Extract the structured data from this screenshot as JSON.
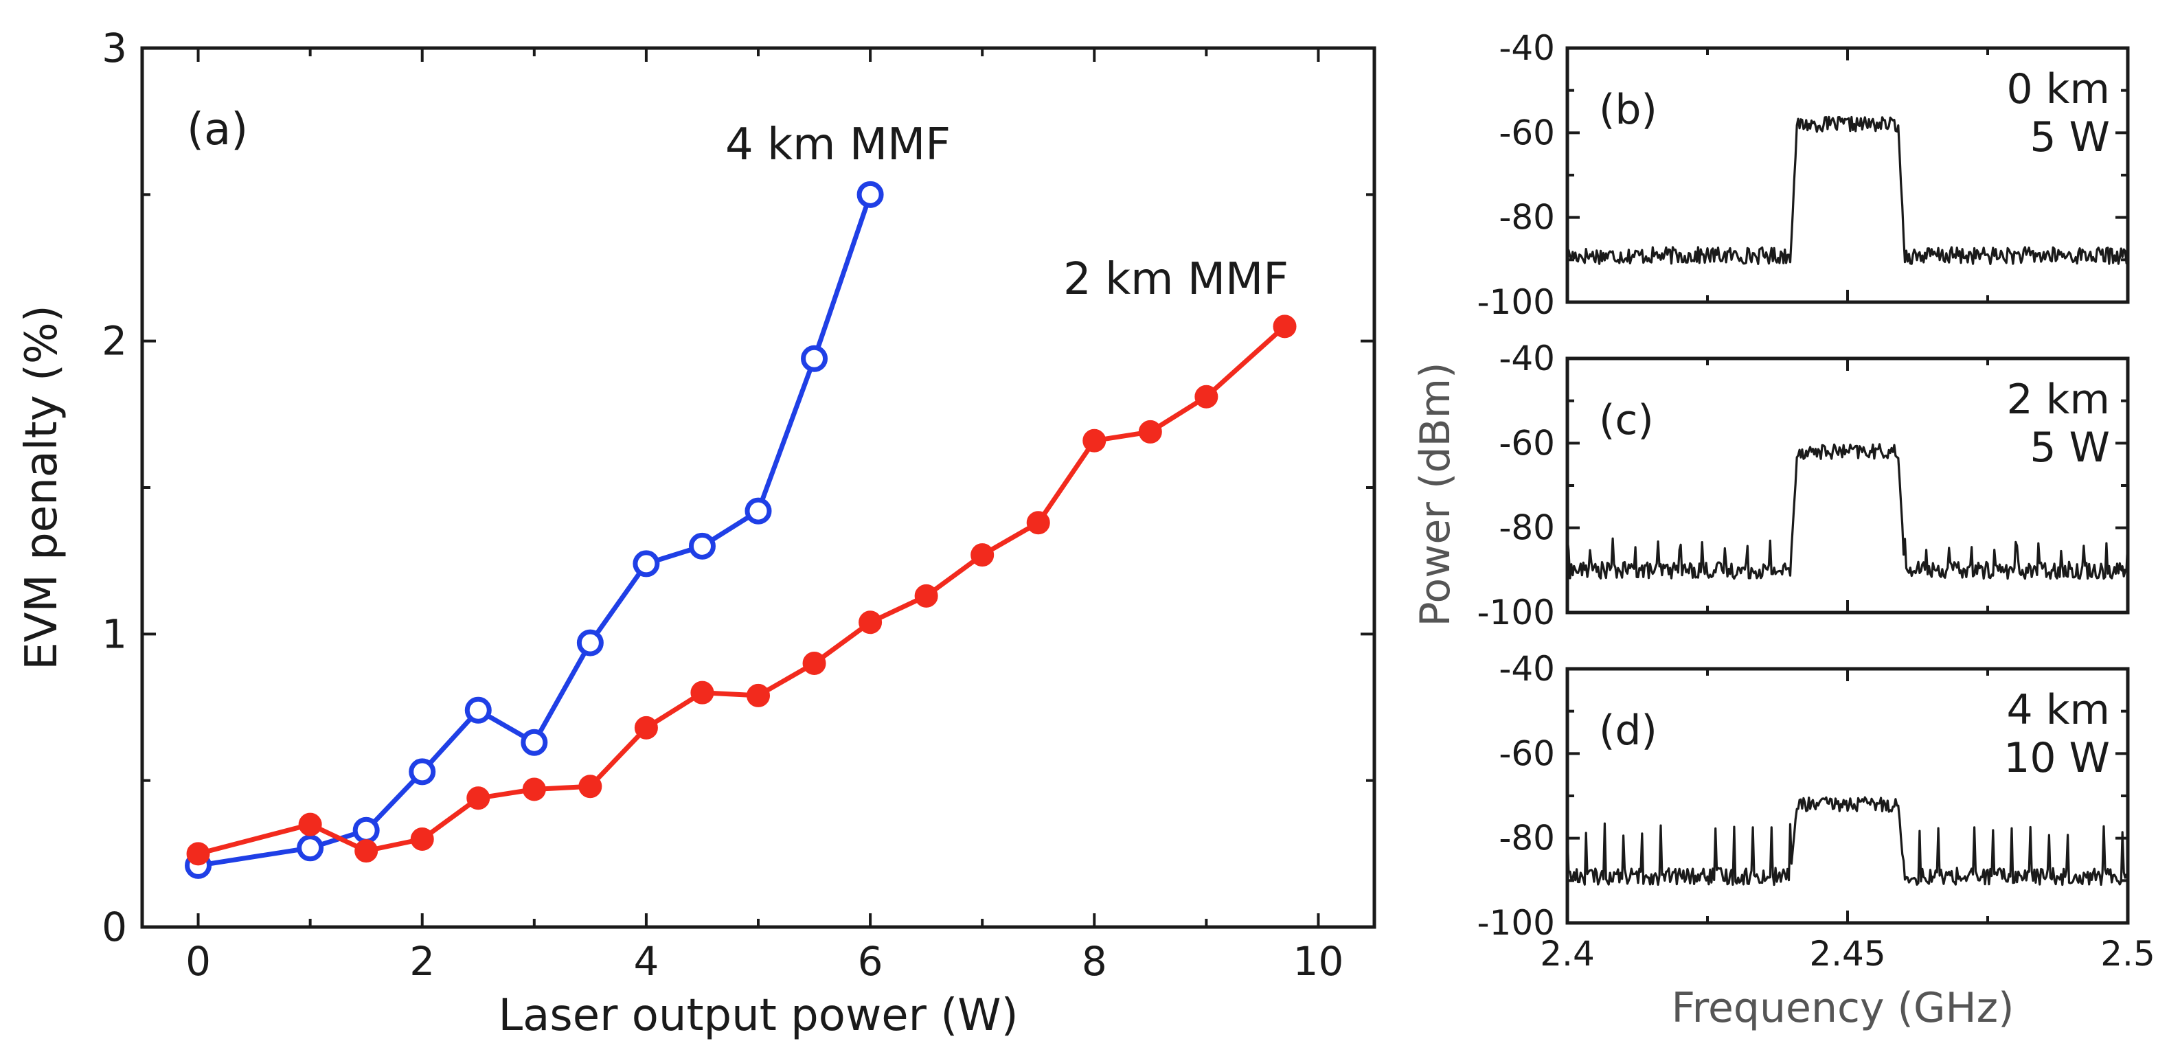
{
  "chart_data": [
    {
      "type": "line",
      "panel": "(a)",
      "xlabel": "Laser output power (W)",
      "ylabel": "EVM penalty (%)",
      "xlim": [
        -0.5,
        10.5
      ],
      "ylim": [
        0,
        3
      ],
      "xticks": [
        0,
        2,
        4,
        6,
        8,
        10
      ],
      "yticks": [
        0,
        1,
        2,
        3
      ],
      "series": [
        {
          "name": "4 km MMF",
          "color": "#1f3fe6",
          "marker": "open-circle",
          "x": [
            0,
            1,
            1.5,
            2,
            2.5,
            3,
            3.5,
            4,
            4.5,
            5,
            5.5,
            6
          ],
          "y": [
            0.21,
            0.27,
            0.33,
            0.53,
            0.74,
            0.63,
            0.97,
            1.24,
            1.3,
            1.42,
            1.94,
            2.5
          ]
        },
        {
          "name": "2 km MMF",
          "color": "#f22a1d",
          "marker": "filled-circle",
          "x": [
            0,
            1,
            1.5,
            2,
            2.5,
            3,
            3.5,
            4,
            4.5,
            5,
            5.5,
            6,
            6.5,
            7,
            7.5,
            8,
            8.5,
            9,
            9.7
          ],
          "y": [
            0.25,
            0.35,
            0.26,
            0.3,
            0.44,
            0.47,
            0.48,
            0.68,
            0.8,
            0.79,
            0.9,
            1.04,
            1.13,
            1.27,
            1.38,
            1.66,
            1.69,
            1.81,
            2.05
          ]
        }
      ]
    },
    {
      "type": "line",
      "panel": "(b)",
      "annotation": [
        "0 km",
        "5 W"
      ],
      "xlim": [
        2.4,
        2.5
      ],
      "ylim": [
        -100,
        -40
      ],
      "yticks": [
        -40,
        -60,
        -80,
        -100
      ],
      "noise_floor_dbm": -89,
      "signal_level_dbm": -58,
      "band_ghz": [
        2.441,
        2.459
      ],
      "spur_spacing_ghz": 0,
      "spur_peak_dbm": 0
    },
    {
      "type": "line",
      "panel": "(c)",
      "annotation": [
        "2 km",
        "5 W"
      ],
      "xlim": [
        2.4,
        2.5
      ],
      "ylim": [
        -100,
        -40
      ],
      "yticks": [
        -40,
        -60,
        -80,
        -100
      ],
      "noise_floor_dbm": -90,
      "signal_level_dbm": -62,
      "band_ghz": [
        2.441,
        2.459
      ],
      "spur_spacing_ghz": 0.004,
      "spur_peak_dbm": -84
    },
    {
      "type": "line",
      "panel": "(d)",
      "annotation": [
        "4 km",
        "10 W"
      ],
      "xlim": [
        2.4,
        2.5
      ],
      "ylim": [
        -100,
        -40
      ],
      "yticks": [
        -40,
        -60,
        -80,
        -100
      ],
      "noise_floor_dbm": -89,
      "signal_level_dbm": -72,
      "band_ghz": [
        2.441,
        2.459
      ],
      "spur_spacing_ghz": 0.0033,
      "spur_peak_dbm": -78
    }
  ],
  "spectra_axes": {
    "ylabel": "Power (dBm)",
    "xlabel": "Frequency (GHz)",
    "xticks": [
      2.4,
      2.45,
      2.5
    ]
  }
}
